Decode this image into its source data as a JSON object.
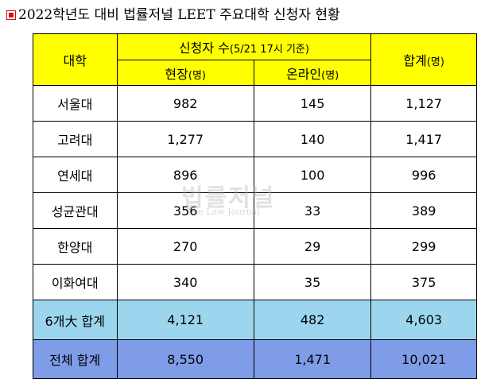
{
  "title": "2022학년도 대비 법률저널 LEET 주요대학 신청자 현황",
  "header": {
    "university": "대학",
    "applicants_main": "신청자 수",
    "applicants_note": "(5/21 17시 기준)",
    "onsite": "현장",
    "onsite_unit": "(명)",
    "online": "온라인",
    "online_unit": "(명)",
    "total": "합계",
    "total_unit": "(명)"
  },
  "rows": [
    {
      "name": "서울대",
      "onsite": "982",
      "online": "145",
      "total": "1,127"
    },
    {
      "name": "고려대",
      "onsite": "1,277",
      "online": "140",
      "total": "1,417"
    },
    {
      "name": "연세대",
      "onsite": "896",
      "online": "100",
      "total": "996"
    },
    {
      "name": "성균관대",
      "onsite": "356",
      "online": "33",
      "total": "389"
    },
    {
      "name": "한양대",
      "onsite": "270",
      "online": "29",
      "total": "299"
    },
    {
      "name": "이화여대",
      "onsite": "340",
      "online": "35",
      "total": "375"
    }
  ],
  "six_total": {
    "name": "6개大 합계",
    "onsite": "4,121",
    "online": "482",
    "total": "4,603"
  },
  "grand_total": {
    "name": "전체 합계",
    "onsite": "8,550",
    "online": "1,471",
    "total": "10,021"
  },
  "watermark": {
    "main": "법률저널",
    "sub": "The Law Journal"
  },
  "colors": {
    "header": "#ffff00",
    "six_total_row": "#9bd6ee",
    "grand_total_row": "#7f9ce8",
    "bullet": "#d01010"
  }
}
